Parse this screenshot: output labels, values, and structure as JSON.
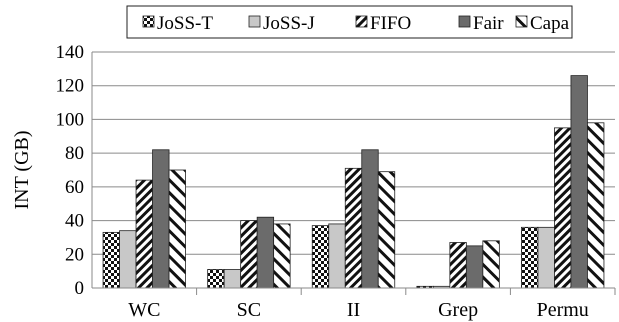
{
  "chart_data": {
    "type": "bar",
    "title": "",
    "xlabel": "",
    "ylabel": "INT (GB)",
    "ylim": [
      0,
      140
    ],
    "yticks": [
      0,
      20,
      40,
      60,
      80,
      100,
      120,
      140
    ],
    "grid": true,
    "legend_position": "top",
    "categories": [
      "WC",
      "SC",
      "II",
      "Grep",
      "Permu"
    ],
    "series": [
      {
        "name": "JoSS-T",
        "pattern": "checker",
        "values": [
          33,
          11,
          37,
          1,
          36
        ]
      },
      {
        "name": "JoSS-J",
        "pattern": "light-gray",
        "values": [
          34,
          11,
          38,
          1,
          36
        ]
      },
      {
        "name": "FIFO",
        "pattern": "dense-diagonal",
        "values": [
          64,
          40,
          71,
          27,
          95
        ]
      },
      {
        "name": "Fair",
        "pattern": "dark-gray",
        "values": [
          82,
          42,
          82,
          25,
          126
        ]
      },
      {
        "name": "Capa",
        "pattern": "wide-diagonal",
        "values": [
          70,
          38,
          69,
          28,
          98
        ]
      }
    ]
  }
}
